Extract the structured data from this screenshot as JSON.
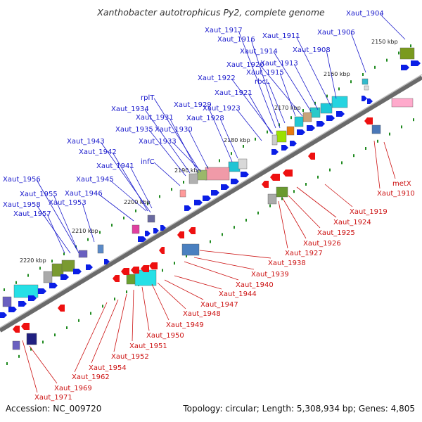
{
  "title": "Xanthobacter autotrophicus Py2, complete genome",
  "footer": {
    "accession": "Accession: NC_009720",
    "summary": "Topology: circular; Length: 5,308,934 bp; Genes: 4,805"
  },
  "colors": {
    "forward_label": "#1a1acc",
    "reverse_label": "#cc1111",
    "forward_arrow": "#0a1ee6",
    "reverse_arrow": "#ee1010",
    "backbone": "#6a6a6a",
    "tick": "#1f8a1f"
  },
  "kbp_ticks": [
    "2150 kbp",
    "2160 kbp",
    "2170 kbp",
    "2180 kbp",
    "2190 kbp",
    "2200 kbp",
    "2210 kbp",
    "2220 kbp"
  ],
  "forward_labels": [
    "Xaut_1904",
    "Xaut_1917",
    "Xaut_1916",
    "Xaut_1911",
    "Xaut_1906",
    "Xaut_1914",
    "Xaut_1913",
    "Xaut_1908",
    "Xaut_1920",
    "Xaut_1915",
    "rbcL",
    "Xaut_1922",
    "Xaut_1921",
    "rplT",
    "Xaut_1929",
    "Xaut_1923",
    "Xaut_1934",
    "Xaut_1931",
    "Xaut_1928",
    "Xaut_1935",
    "Xaut_1930",
    "Xaut_1933",
    "Xaut_1943",
    "Xaut_1942",
    "Xaut_1941",
    "infC",
    "Xaut_1945",
    "Xaut_1956",
    "Xaut_1955",
    "Xaut_1946",
    "Xaut_1958",
    "Xaut_1953",
    "Xaut_1957"
  ],
  "reverse_labels": [
    "metX",
    "Xaut_1910",
    "Xaut_1919",
    "Xaut_1924",
    "Xaut_1925",
    "Xaut_1926",
    "Xaut_1927",
    "Xaut_1938",
    "Xaut_1939",
    "Xaut_1940",
    "Xaut_1944",
    "Xaut_1947",
    "Xaut_1948",
    "Xaut_1949",
    "Xaut_1950",
    "Xaut_1951",
    "Xaut_1952",
    "Xaut_1954",
    "Xaut_1962",
    "Xaut_1969",
    "Xaut_1971"
  ]
}
